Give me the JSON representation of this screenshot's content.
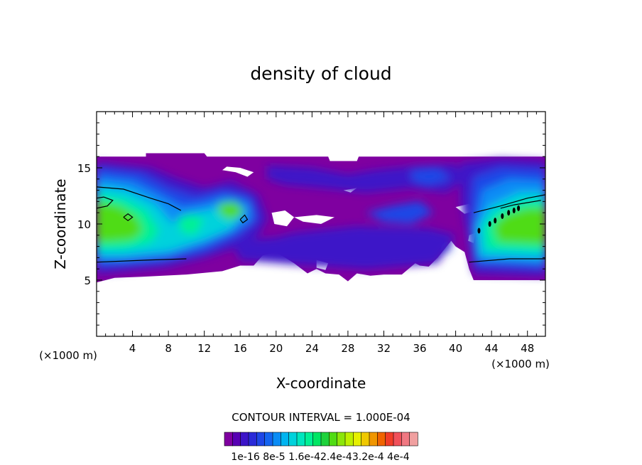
{
  "chart_data": {
    "type": "heatmap",
    "title": "density of cloud",
    "xlabel": "X-coordinate",
    "ylabel": "Z-coordinate",
    "x_unit_label": "(×1000 m)",
    "x_unit_label_right": "(×1000 m)",
    "xlim": [
      0,
      50
    ],
    "ylim": [
      0,
      20
    ],
    "x_ticks": [
      4,
      8,
      12,
      16,
      20,
      24,
      28,
      32,
      36,
      40,
      44,
      48
    ],
    "y_ticks": [
      5,
      10,
      15
    ],
    "contour_interval_text": "CONTOUR INTERVAL = 1.000E-04",
    "colorbar_labels": [
      "1e-16",
      "8e-5",
      "1.6e-4",
      "2.4e-4",
      "3.2e-4",
      "4e-4"
    ],
    "colorbar_label_text": "1e-16 8e-5 1.6e-42.4e-43.2e-4 4e-4",
    "colorbar_range": [
      0,
      0.0004
    ],
    "colors": [
      "#7f00a0",
      "#5800b4",
      "#3c14c8",
      "#2a2ad8",
      "#1e46e6",
      "#1464f0",
      "#0a8cf5",
      "#00b4f0",
      "#00d2dc",
      "#00e6be",
      "#00f096",
      "#00e664",
      "#1ed23c",
      "#50dc14",
      "#8ce60a",
      "#bef000",
      "#e6f000",
      "#f0c800",
      "#f09600",
      "#f06400",
      "#f03c28",
      "#f0505a",
      "#f07882",
      "#f0a0a0"
    ]
  }
}
